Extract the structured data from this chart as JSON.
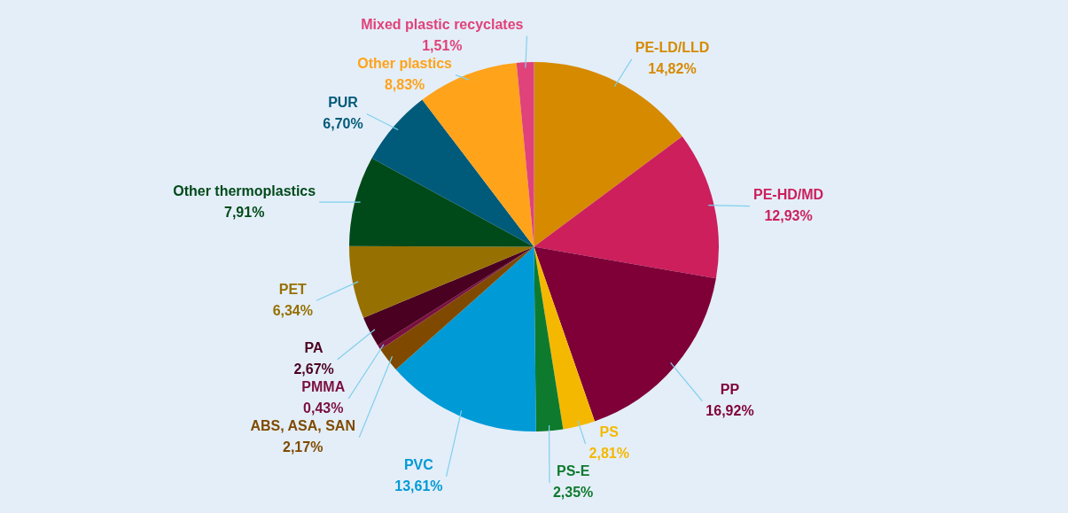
{
  "chart_data": {
    "type": "pie",
    "categories": [
      "PE-LD/LLD",
      "PE-HD/MD",
      "PP",
      "PS",
      "PS-E",
      "PVC",
      "ABS, ASA, SAN",
      "PMMA",
      "PA",
      "PET",
      "Other thermoplastics",
      "PUR",
      "Other plastics",
      "Mixed plastic recyclates"
    ],
    "values": [
      14.82,
      12.93,
      16.92,
      2.81,
      2.35,
      13.61,
      2.17,
      0.43,
      2.67,
      6.34,
      7.91,
      6.7,
      8.83,
      1.51
    ],
    "value_labels": [
      "14,82%",
      "12,93%",
      "16,92%",
      "2,81%",
      "2,35%",
      "13,61%",
      "2,17%",
      "0,43%",
      "2,67%",
      "6,34%",
      "7,91%",
      "6,70%",
      "8,83%",
      "1,51%"
    ],
    "colors": [
      "#d68a00",
      "#cc1f5c",
      "#7f0037",
      "#f5b800",
      "#0e7a2e",
      "#009ad6",
      "#7f4a00",
      "#7a1040",
      "#4a0020",
      "#967000",
      "#004a1a",
      "#005a7a",
      "#ffa31a",
      "#e0427a"
    ]
  }
}
